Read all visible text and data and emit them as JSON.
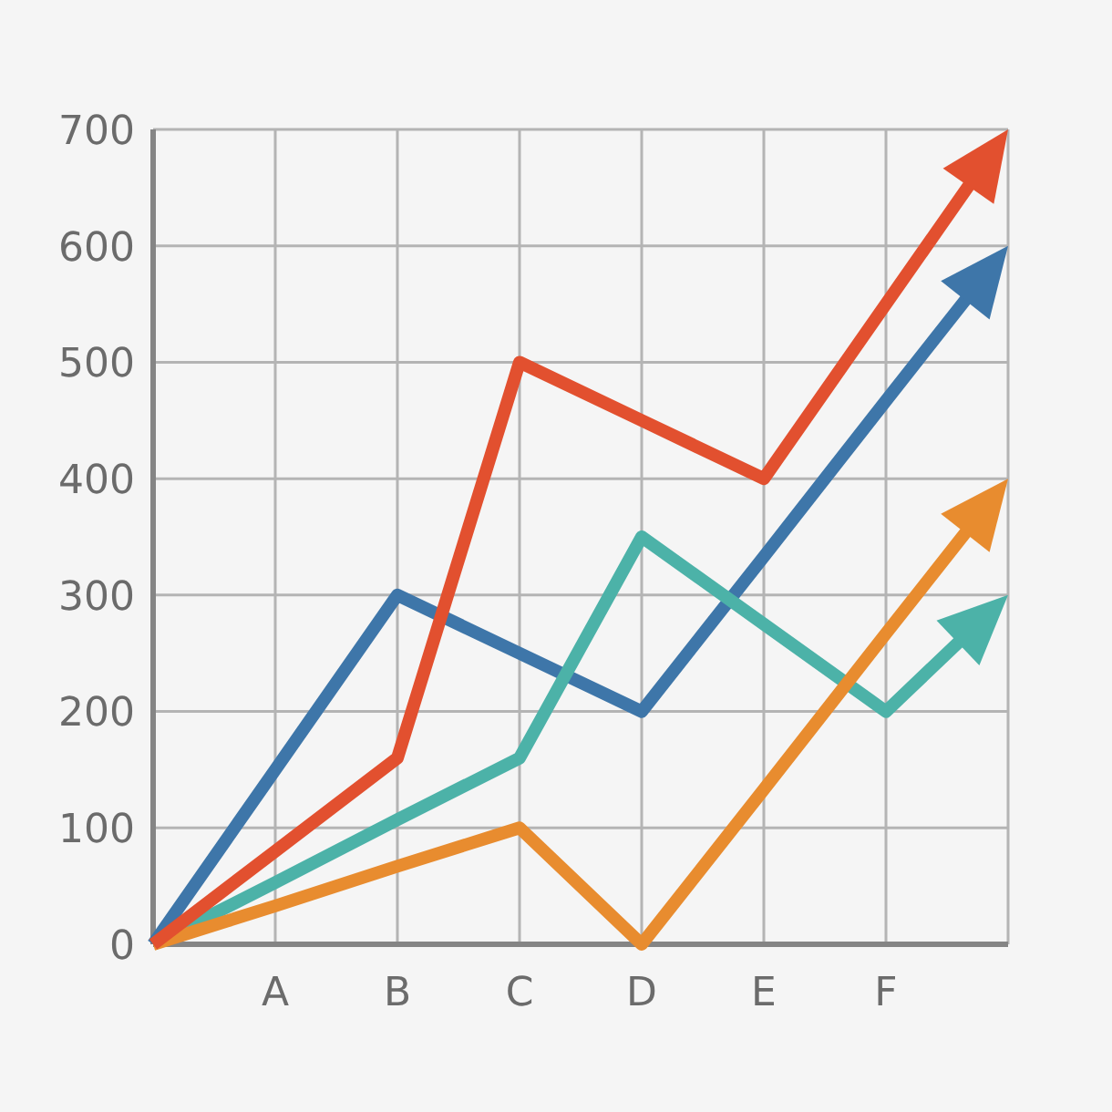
{
  "chart_data": {
    "type": "line",
    "categories": [
      null,
      "A",
      "B",
      "C",
      "D",
      "E",
      "F",
      null
    ],
    "ylim": [
      0,
      700
    ],
    "yticks": [
      0,
      100,
      200,
      300,
      400,
      500,
      600,
      700
    ],
    "grid": true,
    "line_style": "solid",
    "series": [
      {
        "color": "#3e76a9",
        "values": [
          0,
          150,
          300,
          250,
          200,
          333,
          467,
          600
        ]
      },
      {
        "color": "#4cb2a8",
        "values": [
          0,
          53,
          107,
          160,
          350,
          275,
          200,
          300
        ]
      },
      {
        "color": "#e88c2f",
        "values": [
          0,
          33,
          67,
          100,
          0,
          133,
          267,
          400
        ]
      },
      {
        "color": "#e2502f",
        "values": [
          0,
          80,
          160,
          500,
          450,
          400,
          550,
          700
        ]
      }
    ]
  }
}
